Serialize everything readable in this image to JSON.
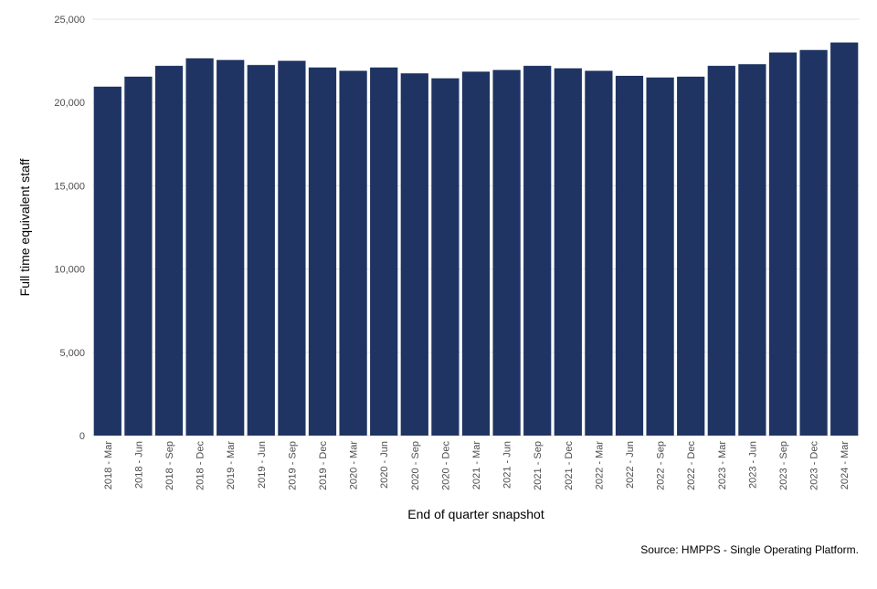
{
  "chart_data": {
    "type": "bar",
    "xlabel": "End of quarter snapshot",
    "ylabel": "Full time equivalent staff",
    "source": "Source: HMPPS - Single Operating Platform.",
    "ylim": [
      0,
      25000
    ],
    "yticks": [
      0,
      5000,
      10000,
      15000,
      20000,
      25000
    ],
    "ytick_labels": [
      "0",
      "5,000",
      "10,000",
      "15,000",
      "20,000",
      "25,000"
    ],
    "grid": true,
    "bar_color": "#1f3462",
    "categories": [
      "2018 - Mar",
      "2018 - Jun",
      "2018 - Sep",
      "2018 - Dec",
      "2019 - Mar",
      "2019 - Jun",
      "2019 - Sep",
      "2019 - Dec",
      "2020 - Mar",
      "2020 - Jun",
      "2020 - Sep",
      "2020 - Dec",
      "2021 - Mar",
      "2021 - Jun",
      "2021 - Sep",
      "2021 - Dec",
      "2022 - Mar",
      "2022 - Jun",
      "2022 - Sep",
      "2022 - Dec",
      "2023 - Mar",
      "2023 - Jun",
      "2023 - Sep",
      "2023 - Dec",
      "2024 - Mar"
    ],
    "values": [
      20950,
      21550,
      22200,
      22650,
      22550,
      22250,
      22500,
      22100,
      21900,
      22100,
      21750,
      21450,
      21850,
      21950,
      22200,
      22050,
      21900,
      21600,
      21500,
      21550,
      22200,
      22300,
      23000,
      23150,
      23600
    ]
  }
}
